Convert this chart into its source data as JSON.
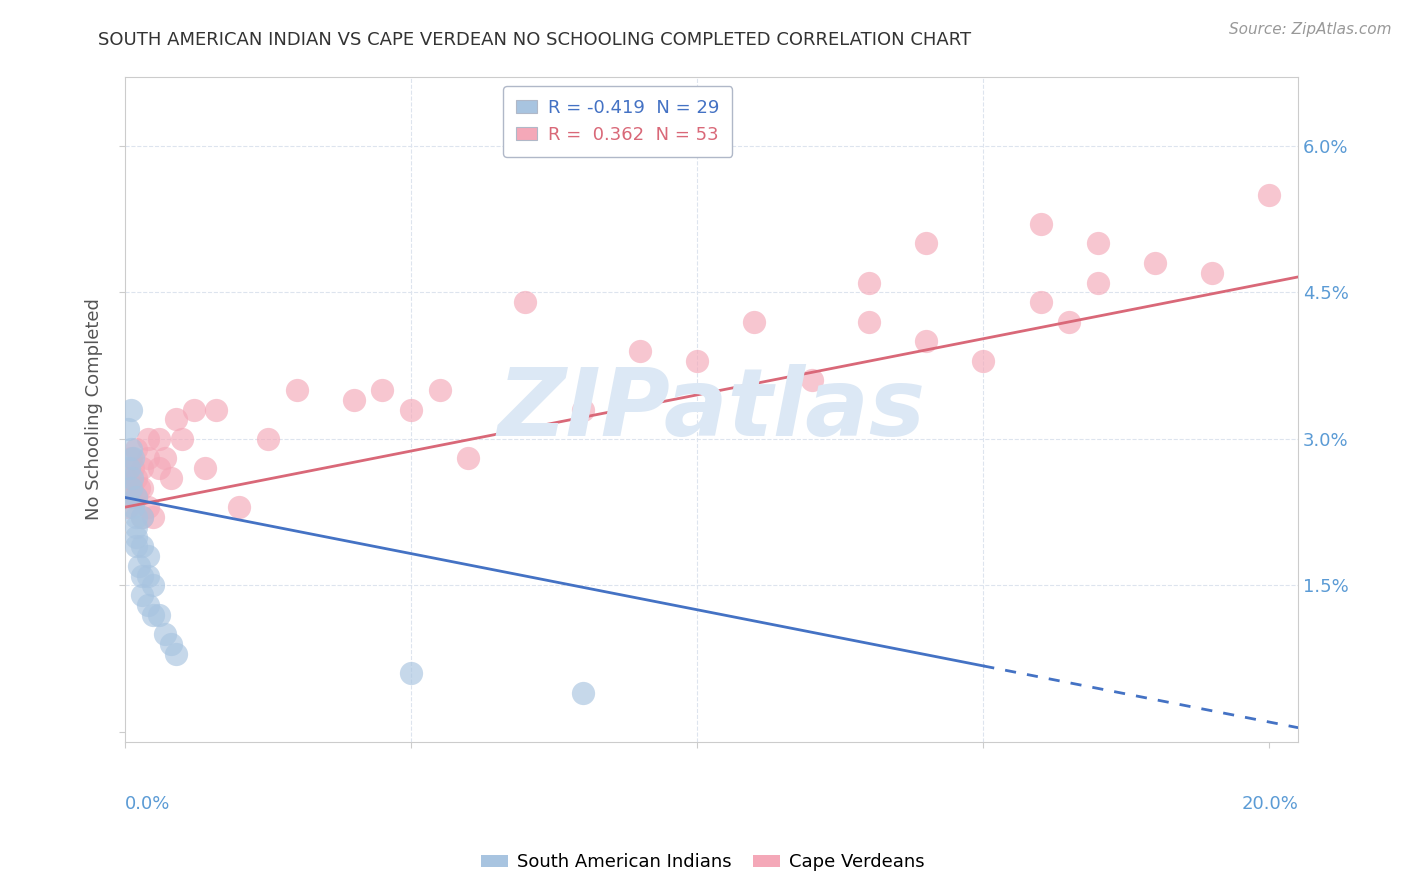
{
  "title": "SOUTH AMERICAN INDIAN VS CAPE VERDEAN NO SCHOOLING COMPLETED CORRELATION CHART",
  "source": "Source: ZipAtlas.com",
  "ylabel": "No Schooling Completed",
  "ytick_values": [
    0.0,
    0.015,
    0.03,
    0.045,
    0.06
  ],
  "ytick_labels": [
    "",
    "1.5%",
    "3.0%",
    "4.5%",
    "6.0%"
  ],
  "xtick_values": [
    0.0,
    0.05,
    0.1,
    0.15,
    0.2
  ],
  "xlim": [
    0.0,
    0.205
  ],
  "ylim": [
    -0.001,
    0.067
  ],
  "legend_text_1": "R = -0.419  N = 29",
  "legend_text_2": "R =  0.362  N = 53",
  "color_blue": "#a8c4e0",
  "color_pink": "#f4a8b8",
  "line_blue": "#4472c4",
  "line_pink": "#d96878",
  "watermark": "ZIPatlas",
  "watermark_color": "#dce8f5",
  "title_color": "#333333",
  "source_color": "#999999",
  "grid_color": "#dde4ee",
  "right_axis_color": "#5b9bd5",
  "south_american_indians_x": [
    0.0005,
    0.0008,
    0.001,
    0.001,
    0.001,
    0.0012,
    0.0015,
    0.0015,
    0.002,
    0.002,
    0.002,
    0.002,
    0.002,
    0.0025,
    0.003,
    0.003,
    0.003,
    0.003,
    0.004,
    0.004,
    0.004,
    0.005,
    0.005,
    0.006,
    0.007,
    0.008,
    0.009,
    0.05,
    0.08
  ],
  "south_american_indians_y": [
    0.031,
    0.027,
    0.029,
    0.025,
    0.033,
    0.026,
    0.023,
    0.028,
    0.019,
    0.022,
    0.02,
    0.024,
    0.021,
    0.017,
    0.016,
    0.019,
    0.022,
    0.014,
    0.016,
    0.018,
    0.013,
    0.012,
    0.015,
    0.012,
    0.01,
    0.009,
    0.008,
    0.006,
    0.004
  ],
  "cape_verdeans_x": [
    0.0003,
    0.0005,
    0.001,
    0.001,
    0.0012,
    0.0015,
    0.002,
    0.002,
    0.002,
    0.0025,
    0.003,
    0.003,
    0.003,
    0.004,
    0.004,
    0.004,
    0.005,
    0.006,
    0.006,
    0.007,
    0.008,
    0.009,
    0.01,
    0.012,
    0.014,
    0.016,
    0.02,
    0.025,
    0.03,
    0.04,
    0.05,
    0.06,
    0.08,
    0.09,
    0.1,
    0.12,
    0.13,
    0.14,
    0.15,
    0.16,
    0.165,
    0.17,
    0.18,
    0.19,
    0.2,
    0.14,
    0.16,
    0.045,
    0.055,
    0.07,
    0.11,
    0.13,
    0.17
  ],
  "cape_verdeans_y": [
    0.026,
    0.023,
    0.024,
    0.028,
    0.025,
    0.027,
    0.024,
    0.026,
    0.029,
    0.025,
    0.022,
    0.025,
    0.027,
    0.028,
    0.023,
    0.03,
    0.022,
    0.03,
    0.027,
    0.028,
    0.026,
    0.032,
    0.03,
    0.033,
    0.027,
    0.033,
    0.023,
    0.03,
    0.035,
    0.034,
    0.033,
    0.028,
    0.033,
    0.039,
    0.038,
    0.036,
    0.042,
    0.04,
    0.038,
    0.044,
    0.042,
    0.046,
    0.048,
    0.047,
    0.055,
    0.05,
    0.052,
    0.035,
    0.035,
    0.044,
    0.042,
    0.046,
    0.05
  ],
  "blue_line_x0": 0.0,
  "blue_line_x_solid_end": 0.15,
  "blue_line_x_dash_end": 0.205,
  "blue_line_y_intercept": 0.024,
  "blue_line_slope": -0.115,
  "pink_line_x0": 0.0,
  "pink_line_x_end": 0.205,
  "pink_line_y_intercept": 0.023,
  "pink_line_slope": 0.115
}
